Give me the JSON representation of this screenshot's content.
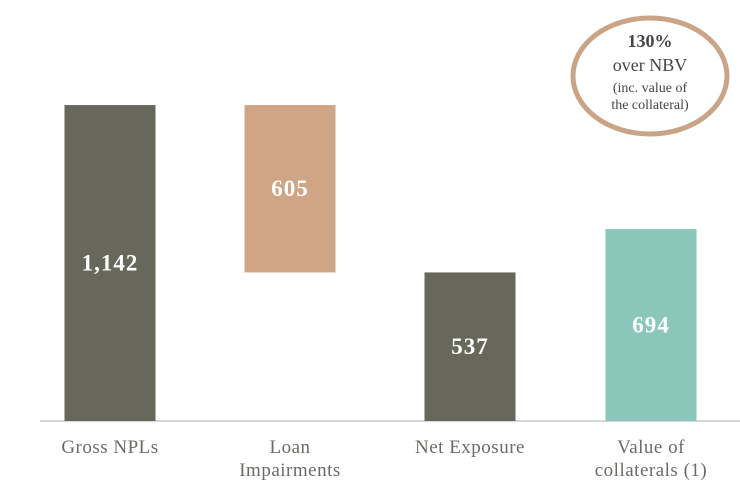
{
  "chart_data": {
    "type": "waterfall",
    "categories": [
      "Gross NPLs",
      "Loan Impairments",
      "Net Exposure",
      "Value of collaterals (1)"
    ],
    "values": [
      1142,
      605,
      537,
      694
    ],
    "value_labels": [
      "1,142",
      "605",
      "537",
      "694"
    ],
    "measure": [
      "absolute",
      "decrease",
      "total",
      "absolute"
    ],
    "colors": [
      "#67675b",
      "#cfa585",
      "#67675b",
      "#8ac6ba"
    ],
    "ylim": [
      0,
      1200
    ],
    "annotation": {
      "title": "130%",
      "subtitle": "over NBV",
      "lines": [
        "(inc. value of",
        "the collateral)"
      ]
    }
  }
}
